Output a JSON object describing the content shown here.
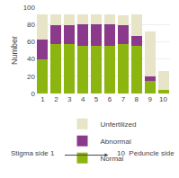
{
  "chart_data": {
    "type": "bar",
    "stacked": true,
    "categories": [
      "1",
      "2",
      "3",
      "4",
      "5",
      "6",
      "7",
      "8",
      "9",
      "10"
    ],
    "series": [
      {
        "name": "Normal",
        "color": "#8db510",
        "values": [
          40,
          57,
          57,
          55,
          55,
          55,
          57,
          55,
          15,
          4
        ]
      },
      {
        "name": "Abnormal",
        "color": "#8b3a8b",
        "values": [
          22,
          22,
          22,
          25,
          25,
          25,
          22,
          12,
          5,
          0
        ]
      },
      {
        "name": "Unfertilized",
        "color": "#e8e4c8",
        "values": [
          30,
          13,
          13,
          12,
          12,
          12,
          12,
          25,
          52,
          22
        ]
      }
    ],
    "ylabel": "Number",
    "ylim": [
      0,
      100
    ],
    "yticks": [
      0,
      20,
      40,
      60,
      80,
      100
    ],
    "grid": true,
    "legend": "bottom",
    "annotations": [
      "Stigma side 1",
      "10  Peduncle side"
    ]
  }
}
